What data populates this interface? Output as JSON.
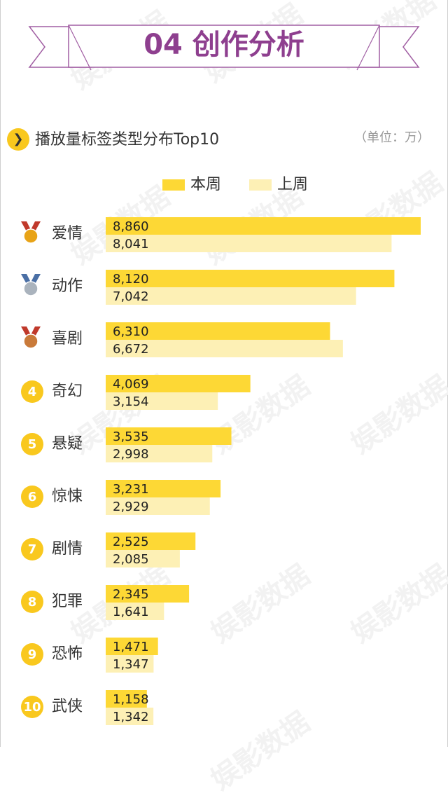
{
  "banner": {
    "title": "04 创作分析"
  },
  "subtitle": "播放量标签类型分布Top10",
  "unit": "（单位：万）",
  "watermark": "娱影数据",
  "colors": {
    "current": "#fdd835",
    "previous": "#fdf0b5",
    "accent": "#8e3f8f",
    "badge": "#f9c81e"
  },
  "chart_data": {
    "type": "bar",
    "orientation": "horizontal",
    "categories": [
      "爱情",
      "动作",
      "喜剧",
      "奇幻",
      "悬疑",
      "惊悚",
      "剧情",
      "犯罪",
      "恐怖",
      "武侠"
    ],
    "ranks": [
      "1",
      "2",
      "3",
      "4",
      "5",
      "6",
      "7",
      "8",
      "9",
      "10"
    ],
    "series": [
      {
        "name": "本周",
        "values": [
          8860,
          8120,
          6310,
          4069,
          3535,
          3231,
          2525,
          2345,
          1471,
          1158
        ],
        "labels": [
          "8,860",
          "8,120",
          "6,310",
          "4,069",
          "3,535",
          "3,231",
          "2,525",
          "2,345",
          "1,471",
          "1,158"
        ]
      },
      {
        "name": "上周",
        "values": [
          8041,
          7042,
          6672,
          3154,
          2998,
          2929,
          2085,
          1641,
          1347,
          1342
        ],
        "labels": [
          "8,041",
          "7,042",
          "6,672",
          "3,154",
          "2,998",
          "2,929",
          "2,085",
          "1,641",
          "1,347",
          "1,342"
        ]
      }
    ],
    "medals": [
      "gold",
      "silver",
      "bronze"
    ],
    "legend_position": "top",
    "xlim": [
      0,
      9000
    ]
  }
}
